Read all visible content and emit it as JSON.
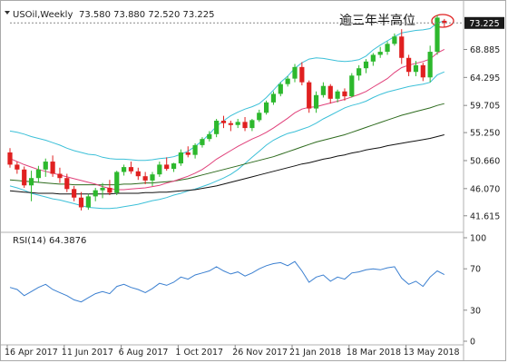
{
  "chart_data": [
    {
      "type": "candlestick",
      "header": {
        "symbol": "USOil,Weekly",
        "ohlc": "73.580 73.880 72.520 73.225"
      },
      "annotation": "逾三年半高位",
      "current_price_label": "73.225",
      "y_tick_labels": [
        "73.225",
        "68.885",
        "64.295",
        "59.705",
        "55.250",
        "50.660",
        "46.070",
        "41.615"
      ],
      "y_tick_values": [
        73.225,
        68.885,
        64.295,
        59.705,
        55.25,
        50.66,
        46.07,
        41.615
      ],
      "ylim": [
        39.5,
        75.5
      ],
      "x_tick_labels": [
        "16 Apr 2017",
        "11 Jun 2017",
        "6 Aug 2017",
        "1 Oct 2017",
        "26 Nov 2017",
        "21 Jan 2018",
        "18 Mar 2018",
        "13 May 2018"
      ],
      "x_tick_index": [
        0,
        8,
        16,
        24,
        32,
        40,
        48,
        56
      ],
      "colors": {
        "up": "#2db82d",
        "down": "#e02020",
        "bb": "#3cc0d8",
        "ma_pink": "#e0407a",
        "ma_green": "#2e6b1e",
        "ma_black": "#111111"
      },
      "candles": [
        [
          52.0,
          52.7,
          49.5,
          50.0
        ],
        [
          50.0,
          50.5,
          48.5,
          49.2
        ],
        [
          49.2,
          49.7,
          46.2,
          46.6
        ],
        [
          46.6,
          49.0,
          44.0,
          47.8
        ],
        [
          47.8,
          49.8,
          47.0,
          49.2
        ],
        [
          49.2,
          51.0,
          48.0,
          50.5
        ],
        [
          50.5,
          51.5,
          48.0,
          48.5
        ],
        [
          48.5,
          49.5,
          47.0,
          47.8
        ],
        [
          47.8,
          48.5,
          45.5,
          46.0
        ],
        [
          46.0,
          46.5,
          44.0,
          44.6
        ],
        [
          44.6,
          45.5,
          42.5,
          43.0
        ],
        [
          43.0,
          45.2,
          42.6,
          44.8
        ],
        [
          44.8,
          46.2,
          44.0,
          45.8
        ],
        [
          45.8,
          47.0,
          44.5,
          46.2
        ],
        [
          46.2,
          47.5,
          45.0,
          45.4
        ],
        [
          45.4,
          49.0,
          45.0,
          48.8
        ],
        [
          48.8,
          50.0,
          48.2,
          49.6
        ],
        [
          49.6,
          50.5,
          48.5,
          48.9
        ],
        [
          48.9,
          49.5,
          47.5,
          48.1
        ],
        [
          48.1,
          48.8,
          46.8,
          47.4
        ],
        [
          47.4,
          48.8,
          46.5,
          48.4
        ],
        [
          48.4,
          50.5,
          48.0,
          50.0
        ],
        [
          50.0,
          51.2,
          49.0,
          49.3
        ],
        [
          49.3,
          50.3,
          48.8,
          50.2
        ],
        [
          50.2,
          52.5,
          49.8,
          52.0
        ],
        [
          52.0,
          53.0,
          51.2,
          51.6
        ],
        [
          51.6,
          53.5,
          51.0,
          53.2
        ],
        [
          53.2,
          54.5,
          52.8,
          54.2
        ],
        [
          54.2,
          55.5,
          53.8,
          55.0
        ],
        [
          55.0,
          57.5,
          54.5,
          57.2
        ],
        [
          57.2,
          58.0,
          56.0,
          56.8
        ],
        [
          56.8,
          57.2,
          55.5,
          56.5
        ],
        [
          56.5,
          57.5,
          56.0,
          57.0
        ],
        [
          57.0,
          57.8,
          55.5,
          56.0
        ],
        [
          56.0,
          57.5,
          55.5,
          57.3
        ],
        [
          57.3,
          59.0,
          57.0,
          58.5
        ],
        [
          58.5,
          60.5,
          58.2,
          60.2
        ],
        [
          60.2,
          62.0,
          59.8,
          61.6
        ],
        [
          61.6,
          63.5,
          61.2,
          63.2
        ],
        [
          63.2,
          64.5,
          62.8,
          64.1
        ],
        [
          64.1,
          66.5,
          63.5,
          66.0
        ],
        [
          66.0,
          66.8,
          63.0,
          63.5
        ],
        [
          63.5,
          63.8,
          58.5,
          59.2
        ],
        [
          59.2,
          62.0,
          58.5,
          61.4
        ],
        [
          61.4,
          63.5,
          61.0,
          62.9
        ],
        [
          62.9,
          63.2,
          60.0,
          60.8
        ],
        [
          60.8,
          62.3,
          60.2,
          62.0
        ],
        [
          62.0,
          62.5,
          60.5,
          61.2
        ],
        [
          61.2,
          65.0,
          61.0,
          64.6
        ],
        [
          64.6,
          66.3,
          63.8,
          65.8
        ],
        [
          65.8,
          67.3,
          65.0,
          66.9
        ],
        [
          66.9,
          68.3,
          66.2,
          68.0
        ],
        [
          68.0,
          69.3,
          67.5,
          68.5
        ],
        [
          68.5,
          70.2,
          68.0,
          69.8
        ],
        [
          69.8,
          71.5,
          69.5,
          71.0
        ],
        [
          71.0,
          72.2,
          66.5,
          67.5
        ],
        [
          67.5,
          68.0,
          64.5,
          65.2
        ],
        [
          65.2,
          67.0,
          64.5,
          66.3
        ],
        [
          66.3,
          66.7,
          63.7,
          64.3
        ],
        [
          64.3,
          69.5,
          63.5,
          68.5
        ],
        [
          68.5,
          74.5,
          68.0,
          74.1
        ],
        [
          73.58,
          73.88,
          72.52,
          73.225
        ]
      ],
      "bb_upper": [
        55.5,
        55.3,
        55.0,
        54.6,
        54.3,
        54.0,
        53.6,
        53.2,
        52.7,
        52.3,
        52.0,
        51.7,
        51.6,
        51.2,
        51.0,
        50.9,
        50.9,
        50.8,
        50.7,
        50.7,
        50.8,
        51.0,
        51.1,
        51.3,
        51.7,
        52.2,
        53.0,
        53.9,
        55.0,
        56.3,
        57.2,
        58.0,
        58.6,
        59.1,
        59.5,
        60.0,
        61.0,
        62.2,
        63.5,
        64.5,
        65.8,
        66.7,
        67.3,
        67.5,
        67.4,
        67.2,
        67.0,
        66.9,
        67.0,
        67.2,
        67.8,
        68.8,
        69.6,
        70.3,
        71.0,
        71.6,
        71.8,
        72.0,
        72.1,
        72.3,
        73.2,
        73.6
      ],
      "bb_lower": [
        46.5,
        46.2,
        45.8,
        45.3,
        45.0,
        44.7,
        44.4,
        44.2,
        43.9,
        43.6,
        43.3,
        43.0,
        42.9,
        42.8,
        42.8,
        42.9,
        43.1,
        43.3,
        43.5,
        43.8,
        44.1,
        44.3,
        44.6,
        45.0,
        45.3,
        45.7,
        46.0,
        46.4,
        46.8,
        47.3,
        47.8,
        48.4,
        49.2,
        50.2,
        51.2,
        52.2,
        53.2,
        54.0,
        54.6,
        55.1,
        55.4,
        55.8,
        56.2,
        56.8,
        57.5,
        58.1,
        58.7,
        59.3,
        59.7,
        60.0,
        60.4,
        61.0,
        61.5,
        61.9,
        62.2,
        62.5,
        62.8,
        63.0,
        63.2,
        63.5,
        64.7,
        65.2
      ],
      "ma_pink": [
        51.0,
        50.5,
        50.0,
        49.6,
        49.2,
        48.9,
        48.6,
        48.3,
        48.0,
        47.7,
        47.4,
        47.1,
        46.8,
        46.4,
        46.1,
        45.9,
        45.9,
        46.0,
        46.1,
        46.2,
        46.4,
        46.6,
        47.0,
        47.3,
        47.7,
        48.1,
        48.6,
        49.2,
        50.0,
        50.9,
        51.6,
        52.3,
        53.0,
        53.6,
        54.2,
        54.7,
        55.3,
        56.0,
        56.8,
        57.6,
        58.5,
        59.1,
        59.4,
        59.5,
        59.8,
        60.1,
        60.4,
        60.7,
        61.1,
        61.5,
        62.0,
        62.7,
        63.4,
        64.1,
        65.1,
        65.9,
        66.3,
        66.6,
        66.9,
        67.3,
        68.3,
        68.9
      ],
      "ma_green": [
        47.5,
        47.4,
        47.3,
        47.2,
        47.1,
        47.0,
        46.9,
        46.8,
        46.8,
        46.7,
        46.7,
        46.7,
        46.7,
        46.7,
        46.7,
        46.7,
        46.8,
        46.8,
        46.9,
        47.0,
        47.0,
        47.1,
        47.2,
        47.3,
        47.5,
        47.7,
        48.0,
        48.3,
        48.6,
        48.9,
        49.2,
        49.5,
        49.8,
        50.1,
        50.4,
        50.7,
        51.0,
        51.3,
        51.7,
        52.1,
        52.5,
        52.9,
        53.3,
        53.7,
        54.0,
        54.3,
        54.6,
        54.9,
        55.3,
        55.7,
        56.1,
        56.5,
        56.9,
        57.3,
        57.7,
        58.1,
        58.4,
        58.7,
        59.0,
        59.3,
        59.7,
        60.0
      ],
      "ma_black": [
        45.7,
        45.6,
        45.5,
        45.4,
        45.3,
        45.3,
        45.3,
        45.2,
        45.2,
        45.2,
        45.2,
        45.2,
        45.2,
        45.2,
        45.2,
        45.3,
        45.3,
        45.3,
        45.3,
        45.4,
        45.4,
        45.5,
        45.5,
        45.6,
        45.7,
        45.8,
        45.9,
        46.1,
        46.3,
        46.5,
        46.8,
        47.1,
        47.4,
        47.7,
        48.0,
        48.3,
        48.6,
        48.9,
        49.2,
        49.5,
        49.8,
        50.1,
        50.3,
        50.6,
        50.9,
        51.1,
        51.4,
        51.6,
        51.9,
        52.1,
        52.4,
        52.6,
        52.8,
        53.1,
        53.3,
        53.5,
        53.7,
        53.9,
        54.1,
        54.3,
        54.6,
        54.9
      ]
    },
    {
      "type": "line",
      "label": "RSI(14) 64.3876",
      "y_tick_labels": [
        "100",
        "70",
        "30",
        "0"
      ],
      "y_tick_values": [
        100,
        70,
        30,
        0
      ],
      "ylim": [
        0,
        100
      ],
      "values": [
        52,
        50,
        44,
        48,
        52,
        55,
        50,
        47,
        44,
        40,
        38,
        42,
        46,
        48,
        46,
        53,
        55,
        52,
        50,
        47,
        51,
        56,
        54,
        57,
        62,
        60,
        64,
        66,
        68,
        72,
        68,
        65,
        67,
        63,
        66,
        70,
        73,
        75,
        76,
        73,
        77,
        68,
        57,
        62,
        64,
        58,
        62,
        60,
        66,
        67,
        69,
        70,
        69,
        71,
        72,
        61,
        55,
        58,
        53,
        62,
        68,
        64.39
      ]
    }
  ]
}
